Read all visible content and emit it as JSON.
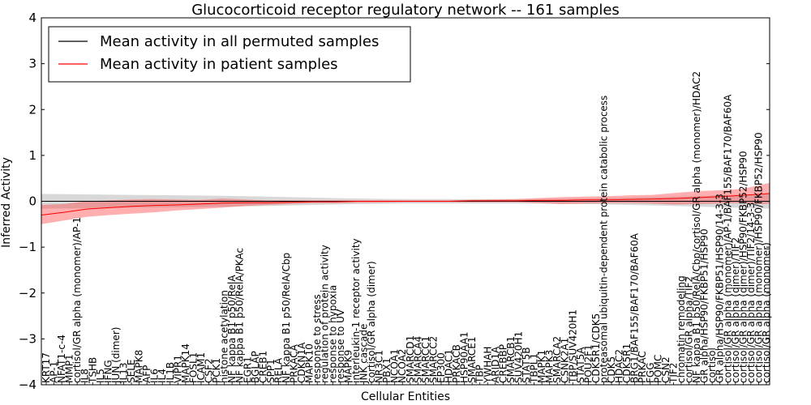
{
  "chart_data": {
    "type": "line",
    "title": "Glucocorticoid receptor regulatory network -- 161 samples",
    "xlabel": "Cellular Entities",
    "ylabel": "Inferred Activity",
    "ylim": [
      -4,
      4
    ],
    "yticks": [
      -4,
      -3,
      -2,
      -1,
      0,
      1,
      2,
      3,
      4
    ],
    "ytick_labels": [
      "−4",
      "−3",
      "−2",
      "−1",
      "0",
      "1",
      "2",
      "3",
      "4"
    ],
    "grid": false,
    "legend_position": "top-left",
    "legend": [
      {
        "label": "Mean activity in all permuted samples",
        "color": "#000000"
      },
      {
        "label": "Mean activity in patient samples",
        "color": "#ff0000"
      }
    ],
    "x_labels": [
      "KRT17",
      "AP-1",
      "NFAT1-c-4",
      "MMP1",
      "cortisol/GR alpha (monomer)/AP-1",
      "IL8",
      "TSHB",
      "IL5",
      "IFNG",
      "JUN (dimer)",
      "IL13",
      "SELE",
      "MAPK8",
      "AFP",
      "IL6",
      "IL4",
      "IL1B",
      "VIPR1",
      "MAPK14",
      "FOSL1",
      "ICAM1",
      "CSF2",
      "PCK1",
      "histone acetylation",
      "NF kappa B1 p50/RelA",
      "NF kappa B1 p50/RelA/PKAc",
      "EGR1",
      "BGLAP",
      "CREB1",
      "SPP1",
      "RELA",
      "NF kappa B1 p50/RelA/Cbp",
      "PRKACA",
      "CDKN1A",
      "MAPK10",
      "response to stress",
      "regulation of protein activity",
      "response to hypoxia",
      "response to UV",
      "MAPK9",
      "interleukin-1 receptor activity",
      "JNK cascade",
      "cortisol/GR alpha (dimer)",
      "NR3C1",
      "PBX1",
      "NCOA1",
      "NCOA2",
      "SMARCD1",
      "SMARCA4",
      "SMARCC1",
      "SMARCC2",
      "EP300",
      "HDAC1",
      "PRKACB",
      "HSP90AA1",
      "SMARCE1",
      "TBP",
      "YWHAH",
      "ARID1A",
      "CREBBP",
      "SMARCB1",
      "SUV420H1",
      "STAT5B",
      "TBPL1",
      "MAPK1",
      "MAPK3",
      "SMARCA2",
      "CSNK2A1",
      "TBP/SUV420H1",
      "STAT5A",
      "POU2F1",
      "CDK5R1/CDK5",
      "proteasomal ubiquitin-dependent protein catabolic process",
      "CDK5",
      "HDAC2",
      "CDK5R1",
      "BRG1/BAF155/BAF170/BAF60A",
      "PRKAC",
      "FGG",
      "POMC",
      "CSN2",
      "TIF2",
      "chromatin remodeling",
      "cortisol/GR alpha/TIF2",
      "NF kappa B1 p50/RelA/Cbp/cortisol/GR alpha (monomer)/HDAC2",
      "GR alpha/HSP90/FKBP51/HSP90",
      "cortisol",
      "GR alpha/HSP90/FKBP51/HSP90/14-3-3",
      "cortisol/GR alpha (monomer)/AP-1/BAF155/BAF170/BAF60A",
      "cortisol/GR alpha (dimer)/TIF2",
      "cortisol/GR alpha (dimer)/HSP90/FKBP52/HSP90",
      "cortisol/GR alpha (dimer)/TIF2/14-3-3",
      "cortisol/GR alpha (monomer)/HSP90/FKBP52/HSP90",
      "cortisol/GR alpha (monomer)"
    ],
    "series": [
      {
        "name": "Mean activity in patient samples",
        "color": "#ff0000",
        "x": [
          0,
          5,
          10,
          15,
          20,
          25,
          30,
          35,
          40,
          45,
          50,
          55,
          60,
          65,
          70,
          75,
          80,
          85,
          90,
          95,
          100,
          105,
          110,
          115,
          120,
          125,
          130,
          135,
          140,
          145,
          150,
          155,
          160,
          161
        ],
        "y": [
          -0.3,
          -0.24,
          -0.17,
          -0.14,
          -0.11,
          -0.09,
          -0.08,
          -0.06,
          -0.04,
          -0.03,
          -0.03,
          -0.02,
          -0.01,
          -0.01,
          0.0,
          0.0,
          0.0,
          0.0,
          0.0,
          0.01,
          0.01,
          0.01,
          0.02,
          0.02,
          0.03,
          0.03,
          0.04,
          0.05,
          0.06,
          0.08,
          0.1,
          0.13,
          0.16,
          0.17
        ],
        "lower": [
          -0.5,
          -0.42,
          -0.34,
          -0.3,
          -0.27,
          -0.24,
          -0.2,
          -0.17,
          -0.14,
          -0.1,
          -0.08,
          -0.06,
          -0.04,
          -0.04,
          -0.03,
          -0.03,
          -0.02,
          -0.02,
          -0.02,
          -0.02,
          -0.02,
          -0.02,
          -0.04,
          -0.06,
          -0.05,
          -0.04,
          -0.04,
          -0.05,
          -0.07,
          -0.06,
          -0.05,
          -0.04,
          -0.06,
          -0.05
        ],
        "upper": [
          -0.08,
          -0.06,
          0.0,
          0.02,
          0.04,
          0.05,
          0.04,
          0.03,
          0.06,
          0.04,
          0.02,
          0.02,
          0.02,
          0.02,
          0.02,
          0.02,
          0.02,
          0.02,
          0.02,
          0.03,
          0.04,
          0.05,
          0.07,
          0.09,
          0.1,
          0.11,
          0.13,
          0.14,
          0.18,
          0.22,
          0.24,
          0.27,
          0.38,
          0.4
        ]
      },
      {
        "name": "Mean activity in all permuted samples",
        "color": "#000000",
        "x": [
          0,
          10,
          20,
          30,
          40,
          50,
          60,
          70,
          80,
          90,
          100,
          110,
          120,
          130,
          140,
          150,
          161
        ],
        "y": [
          0.0,
          0.0,
          0.0,
          0.0,
          0.0,
          0.0,
          0.0,
          0.0,
          0.0,
          0.0,
          0.0,
          0.0,
          0.0,
          0.0,
          0.0,
          0.0,
          0.0
        ],
        "lower": [
          -0.16,
          -0.15,
          -0.14,
          -0.13,
          -0.12,
          -0.1,
          -0.08,
          -0.06,
          -0.05,
          -0.05,
          -0.05,
          -0.05,
          -0.06,
          -0.08,
          -0.1,
          -0.13,
          -0.16
        ],
        "upper": [
          0.16,
          0.15,
          0.14,
          0.13,
          0.12,
          0.1,
          0.08,
          0.06,
          0.05,
          0.05,
          0.05,
          0.05,
          0.06,
          0.08,
          0.1,
          0.13,
          0.16
        ]
      }
    ],
    "xlim": [
      0,
      161
    ]
  }
}
